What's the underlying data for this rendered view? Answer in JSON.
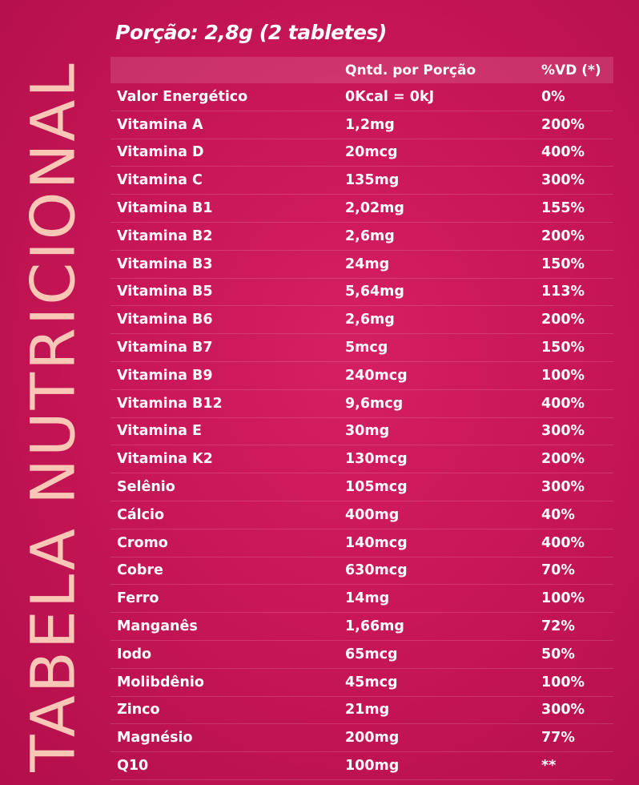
{
  "side_title": "TABELA NUTRICIONAL",
  "portion": "Porção: 2,8g (2 tabletes)",
  "table": {
    "headers": [
      "",
      "Qntd. por Porção",
      "%VD (*)"
    ],
    "rows": [
      [
        "Valor Energético",
        "0Kcal = 0kJ",
        "0%"
      ],
      [
        "Vitamina A",
        "1,2mg",
        "200%"
      ],
      [
        "Vitamina D",
        "20mcg",
        "400%"
      ],
      [
        "Vitamina C",
        "135mg",
        "300%"
      ],
      [
        "Vitamina B1",
        "2,02mg",
        "155%"
      ],
      [
        "Vitamina B2",
        "2,6mg",
        "200%"
      ],
      [
        "Vitamina B3",
        "24mg",
        "150%"
      ],
      [
        "Vitamina B5",
        "5,64mg",
        "113%"
      ],
      [
        "Vitamina B6",
        "2,6mg",
        "200%"
      ],
      [
        "Vitamina B7",
        "5mcg",
        "150%"
      ],
      [
        "Vitamina B9",
        "240mcg",
        "100%"
      ],
      [
        "Vitamina B12",
        "9,6mcg",
        "400%"
      ],
      [
        "Vitamina E",
        "30mg",
        "300%"
      ],
      [
        "Vitamina K2",
        "130mcg",
        "200%"
      ],
      [
        "Selênio",
        "105mcg",
        "300%"
      ],
      [
        "Cálcio",
        "400mg",
        "40%"
      ],
      [
        "Cromo",
        "140mcg",
        "400%"
      ],
      [
        "Cobre",
        "630mcg",
        "70%"
      ],
      [
        "Ferro",
        "14mg",
        "100%"
      ],
      [
        "Manganês",
        "1,66mg",
        "72%"
      ],
      [
        "Iodo",
        "65mcg",
        "50%"
      ],
      [
        "Molibdênio",
        "45mcg",
        "100%"
      ],
      [
        "Zinco",
        "21mg",
        "300%"
      ],
      [
        "Magnésio",
        "200mg",
        "77%"
      ],
      [
        "Q10",
        "100mg",
        "**"
      ]
    ]
  },
  "colors": {
    "background": "#c81657",
    "title_text": "#ffd6be",
    "text": "#ffffff"
  }
}
